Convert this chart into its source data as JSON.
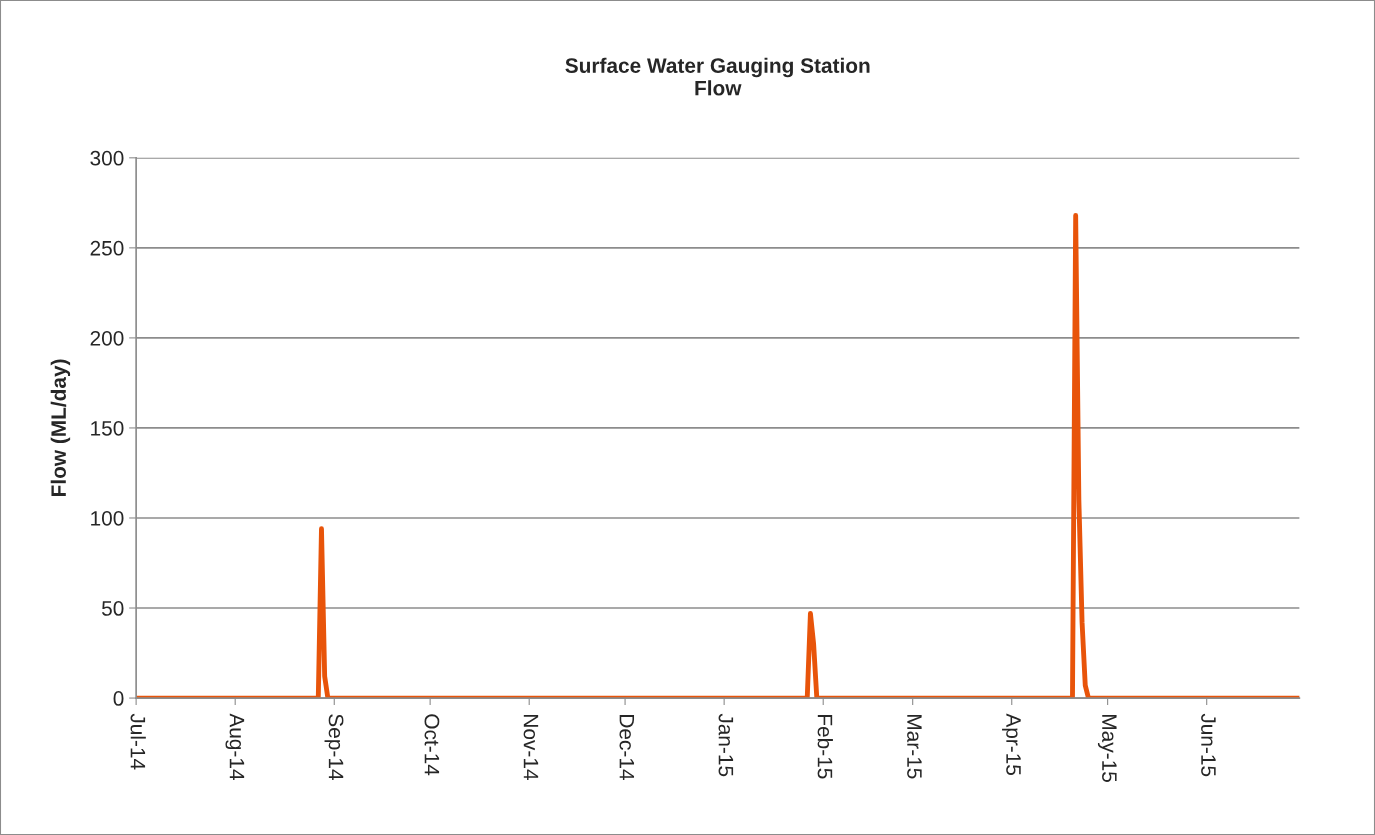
{
  "chart_data": {
    "type": "line",
    "title": "Surface Water Gauging Station\nFlow",
    "ylabel": "Flow (ML/day)",
    "x": [
      "2014-07-01",
      "2014-08-27",
      "2014-08-28",
      "2014-08-29",
      "2014-08-30",
      "2015-01-27",
      "2015-01-28",
      "2015-01-29",
      "2015-01-30",
      "2015-04-20",
      "2015-04-21",
      "2015-04-22",
      "2015-04-23",
      "2015-04-24",
      "2015-04-25",
      "2015-06-30"
    ],
    "series": [
      {
        "color": "#e8540a",
        "values": [
          0,
          0,
          94,
          12,
          0,
          0,
          47,
          30,
          0,
          0,
          268,
          110,
          42,
          7,
          0,
          0
        ]
      }
    ],
    "xlim": [
      "2014-07-01",
      "2015-06-30"
    ],
    "xticks": [
      {
        "value": "2014-07-01",
        "label": "Jul-14"
      },
      {
        "value": "2014-08-01",
        "label": "Aug-14"
      },
      {
        "value": "2014-09-01",
        "label": "Sep-14"
      },
      {
        "value": "2014-10-01",
        "label": "Oct-14"
      },
      {
        "value": "2014-11-01",
        "label": "Nov-14"
      },
      {
        "value": "2014-12-01",
        "label": "Dec-14"
      },
      {
        "value": "2015-01-01",
        "label": "Jan-15"
      },
      {
        "value": "2015-02-01",
        "label": "Feb-15"
      },
      {
        "value": "2015-03-01",
        "label": "Mar-15"
      },
      {
        "value": "2015-04-01",
        "label": "Apr-15"
      },
      {
        "value": "2015-05-01",
        "label": "May-15"
      },
      {
        "value": "2015-06-01",
        "label": "Jun-15"
      }
    ],
    "ylim": [
      0,
      300
    ],
    "yticks": [
      0,
      50,
      100,
      150,
      200,
      250,
      300
    ],
    "grid": "y",
    "marker": "none",
    "line_style": "solid"
  }
}
